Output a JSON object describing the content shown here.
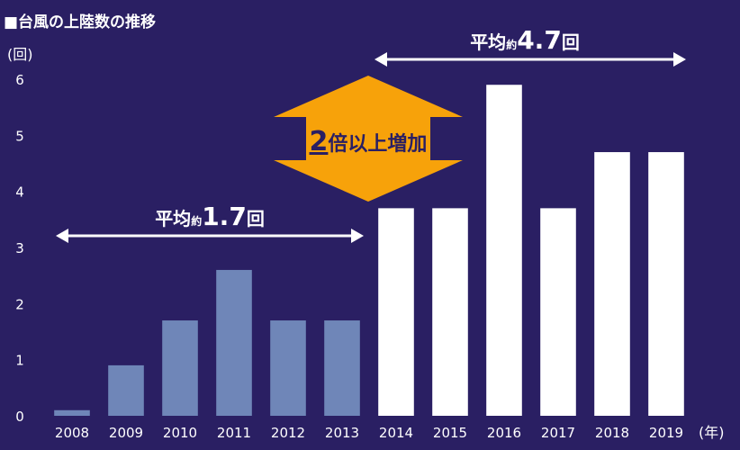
{
  "chart_data": {
    "type": "bar",
    "title": "■台風の上陸数の推移",
    "ylabel": "(回)",
    "xunit": "(年)",
    "ylim": [
      0,
      6
    ],
    "yticks": [
      "0",
      "1",
      "2",
      "3",
      "4",
      "5",
      "6"
    ],
    "categories": [
      "2008",
      "2009",
      "2010",
      "2011",
      "2012",
      "2013",
      "2014",
      "2015",
      "2016",
      "2017",
      "2018",
      "2019"
    ],
    "values": [
      0.1,
      0.9,
      1.7,
      2.6,
      1.7,
      1.7,
      3.7,
      3.7,
      5.9,
      3.7,
      4.7,
      4.7
    ],
    "colors": {
      "background": "#2a1f63",
      "bar_before": "#6f86b8",
      "bar_after": "#ffffff",
      "highlight": "#f7a20a",
      "text": "#ffffff"
    },
    "annotations": {
      "before_prefix": "平均",
      "before_mid": "約",
      "before_value": "1.7",
      "before_unit": "回",
      "after_prefix": "平均",
      "after_mid": "約",
      "after_value": "4.7",
      "after_unit": "回",
      "callout_num": "2",
      "callout_text": "倍以上増加"
    }
  }
}
